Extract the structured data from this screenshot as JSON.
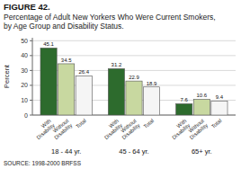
{
  "chart_data": {
    "type": "bar",
    "title": "FIGURE 42.",
    "subtitle": [
      "Percentage of Adult New Yorkers Who Were Current Smokers,",
      "by Age Group and Disability Status."
    ],
    "annotations": [
      "SOURCE:  1998-2000 BRFSS"
    ],
    "ylabel": "Percent",
    "categories": [
      "18 - 44 yr.",
      "45 - 64 yr.",
      "65+  yr."
    ],
    "series": [
      {
        "name": "With\nDisability",
        "color": "#2d6b2d",
        "values": [
          45.1,
          31.2,
          7.6
        ]
      },
      {
        "name": "Without\nDisability",
        "color": "#c8d8a0",
        "values": [
          34.5,
          22.9,
          10.6
        ]
      },
      {
        "name": "Total",
        "color": "#f5f5f5",
        "values": [
          26.4,
          18.9,
          9.4
        ]
      }
    ],
    "ylim": [
      0,
      52
    ],
    "yticks": [
      0,
      10,
      20,
      30,
      40,
      50
    ],
    "grid": true,
    "data_labels": true
  }
}
